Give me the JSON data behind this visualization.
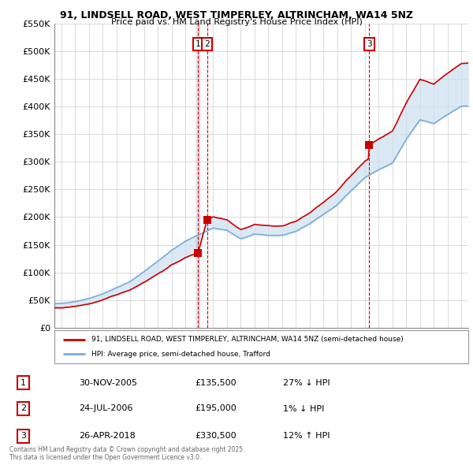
{
  "title_line1": "91, LINDSELL ROAD, WEST TIMPERLEY, ALTRINCHAM, WA14 5NZ",
  "title_line2": "Price paid vs. HM Land Registry's House Price Index (HPI)",
  "ylabel_values": [
    "£0",
    "£50K",
    "£100K",
    "£150K",
    "£200K",
    "£250K",
    "£300K",
    "£350K",
    "£400K",
    "£450K",
    "£500K",
    "£550K"
  ],
  "ylabel_nums": [
    0,
    50000,
    100000,
    150000,
    200000,
    250000,
    300000,
    350000,
    400000,
    450000,
    500000,
    550000
  ],
  "xmin": 1995.5,
  "xmax": 2025.5,
  "ymin": 0,
  "ymax": 550000,
  "sale_dates": [
    2005.92,
    2006.56,
    2018.32
  ],
  "sale_prices": [
    135500,
    195000,
    330500
  ],
  "sale_labels": [
    "1",
    "2",
    "3"
  ],
  "legend_red_label": "91, LINDSELL ROAD, WEST TIMPERLEY, ALTRINCHAM, WA14 5NZ (semi-detached house)",
  "legend_blue_label": "HPI: Average price, semi-detached house, Trafford",
  "table_rows": [
    {
      "num": "1",
      "date": "30-NOV-2005",
      "price": "£135,500",
      "hpi": "27% ↓ HPI"
    },
    {
      "num": "2",
      "date": "24-JUL-2006",
      "price": "£195,000",
      "hpi": "1% ↓ HPI"
    },
    {
      "num": "3",
      "date": "26-APR-2018",
      "price": "£330,500",
      "hpi": "12% ↑ HPI"
    }
  ],
  "footnote": "Contains HM Land Registry data © Crown copyright and database right 2025.\nThis data is licensed under the Open Government Licence v3.0.",
  "red_color": "#cc0000",
  "blue_color": "#7aabdb",
  "fill_color": "#cce0f0",
  "bg_color": "#ffffff",
  "grid_color": "#cccccc"
}
